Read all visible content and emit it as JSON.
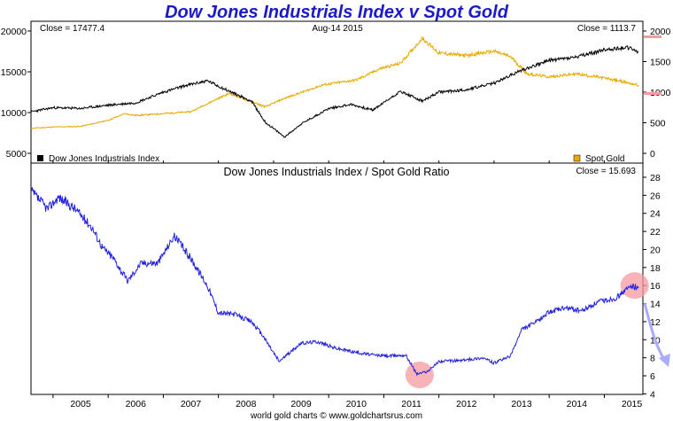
{
  "chart_data": [
    {
      "type": "line",
      "title": "Dow Jones Industrials Index v Spot Gold",
      "annotations": {
        "left": "Close = 17477.4",
        "center": "Aug-14  2015",
        "right": "Close = 1113.7"
      },
      "xlabel": "",
      "x_ticks": [
        "2005",
        "2006",
        "2007",
        "2008",
        "2009",
        "2010",
        "2011",
        "2012",
        "2013",
        "2014",
        "2015"
      ],
      "y_left": {
        "label": "",
        "ylim": [
          5000,
          20000
        ],
        "ticks": [
          "5000",
          "10000",
          "15000",
          "20000"
        ]
      },
      "y_right": {
        "label": "",
        "ylim": [
          0,
          2000
        ],
        "ticks": [
          "0",
          "500",
          "1000",
          "1500",
          "2000"
        ]
      },
      "series": [
        {
          "name": "Dow Jones Industrials Index",
          "color": "#000000",
          "axis": "left",
          "x": [
            2004.6,
            2005.0,
            2005.5,
            2006.0,
            2006.5,
            2007.0,
            2007.4,
            2007.8,
            2008.2,
            2008.6,
            2008.85,
            2009.2,
            2009.5,
            2010.0,
            2010.4,
            2010.8,
            2011.3,
            2011.7,
            2012.0,
            2012.5,
            2013.0,
            2013.5,
            2014.0,
            2014.5,
            2015.0,
            2015.4,
            2015.62
          ],
          "y": [
            10100,
            10600,
            10500,
            10900,
            11200,
            12500,
            13300,
            13900,
            12600,
            11400,
            8800,
            7000,
            8600,
            10500,
            11000,
            10300,
            12600,
            11400,
            12500,
            12800,
            13600,
            15200,
            16400,
            16800,
            17700,
            18000,
            17477.4
          ]
        },
        {
          "name": "Spot Gold",
          "color": "#e8a800",
          "axis": "right",
          "x": [
            2004.6,
            2005.0,
            2005.5,
            2006.0,
            2006.3,
            2006.5,
            2007.0,
            2007.5,
            2008.0,
            2008.2,
            2008.85,
            2009.2,
            2009.9,
            2010.5,
            2010.95,
            2011.3,
            2011.7,
            2012.0,
            2012.5,
            2013.0,
            2013.3,
            2013.6,
            2014.0,
            2014.5,
            2015.0,
            2015.3,
            2015.62
          ],
          "y": [
            410,
            430,
            440,
            540,
            650,
            620,
            650,
            680,
            900,
            980,
            760,
            900,
            1120,
            1200,
            1390,
            1470,
            1880,
            1640,
            1600,
            1670,
            1580,
            1300,
            1250,
            1300,
            1230,
            1180,
            1113.7
          ]
        }
      ],
      "legend": "bottom",
      "grid": false
    },
    {
      "type": "line",
      "title": "Dow Jones Industrials Index  /  Spot Gold Ratio",
      "annotations": {
        "right": "Close = 15.693"
      },
      "xlabel": "",
      "x_ticks": [
        "2005",
        "2006",
        "2007",
        "2008",
        "2009",
        "2010",
        "2011",
        "2012",
        "2013",
        "2014",
        "2015"
      ],
      "y_right": {
        "label": "",
        "ylim": [
          4,
          28
        ],
        "ticks": [
          "4",
          "6",
          "8",
          "10",
          "12",
          "14",
          "16",
          "18",
          "20",
          "22",
          "24",
          "26",
          "28"
        ]
      },
      "series": [
        {
          "name": "",
          "color": "#2020dd",
          "x": [
            2004.6,
            2004.9,
            2005.1,
            2005.4,
            2005.7,
            2005.9,
            2006.1,
            2006.35,
            2006.6,
            2006.9,
            2007.2,
            2007.5,
            2007.8,
            2008.0,
            2008.3,
            2008.6,
            2008.8,
            2009.1,
            2009.5,
            2009.8,
            2010.1,
            2010.5,
            2010.8,
            2011.1,
            2011.4,
            2011.6,
            2011.8,
            2012.0,
            2012.4,
            2012.8,
            2013.0,
            2013.3,
            2013.5,
            2013.8,
            2014.0,
            2014.3,
            2014.6,
            2014.9,
            2015.2,
            2015.5,
            2015.62
          ],
          "y": [
            26.5,
            24.5,
            25.8,
            24.5,
            22.5,
            20.2,
            19.0,
            16.5,
            18.5,
            18.5,
            21.5,
            19.0,
            16.0,
            13.0,
            12.8,
            12.0,
            10.5,
            7.6,
            9.6,
            9.8,
            9.1,
            8.6,
            8.3,
            8.2,
            8.3,
            6.2,
            6.5,
            7.6,
            7.7,
            8.0,
            7.4,
            8.2,
            11.1,
            12.1,
            13.1,
            13.5,
            13.2,
            14.2,
            14.6,
            16.0,
            15.693
          ]
        }
      ],
      "highlights": [
        {
          "label": "",
          "x": 2011.65,
          "y": 6.1
        },
        {
          "label": "",
          "x": 2015.55,
          "y": 16.0
        }
      ],
      "legend": "none",
      "grid": false
    }
  ],
  "footer": "world gold charts © www.goldchartsrus.com",
  "colors": {
    "title": "#1a1acc",
    "dow": "#000000",
    "gold": "#e8a800",
    "ratio": "#2020dd",
    "highlight": "#f59aa0",
    "arrow": "#aaaaff"
  }
}
